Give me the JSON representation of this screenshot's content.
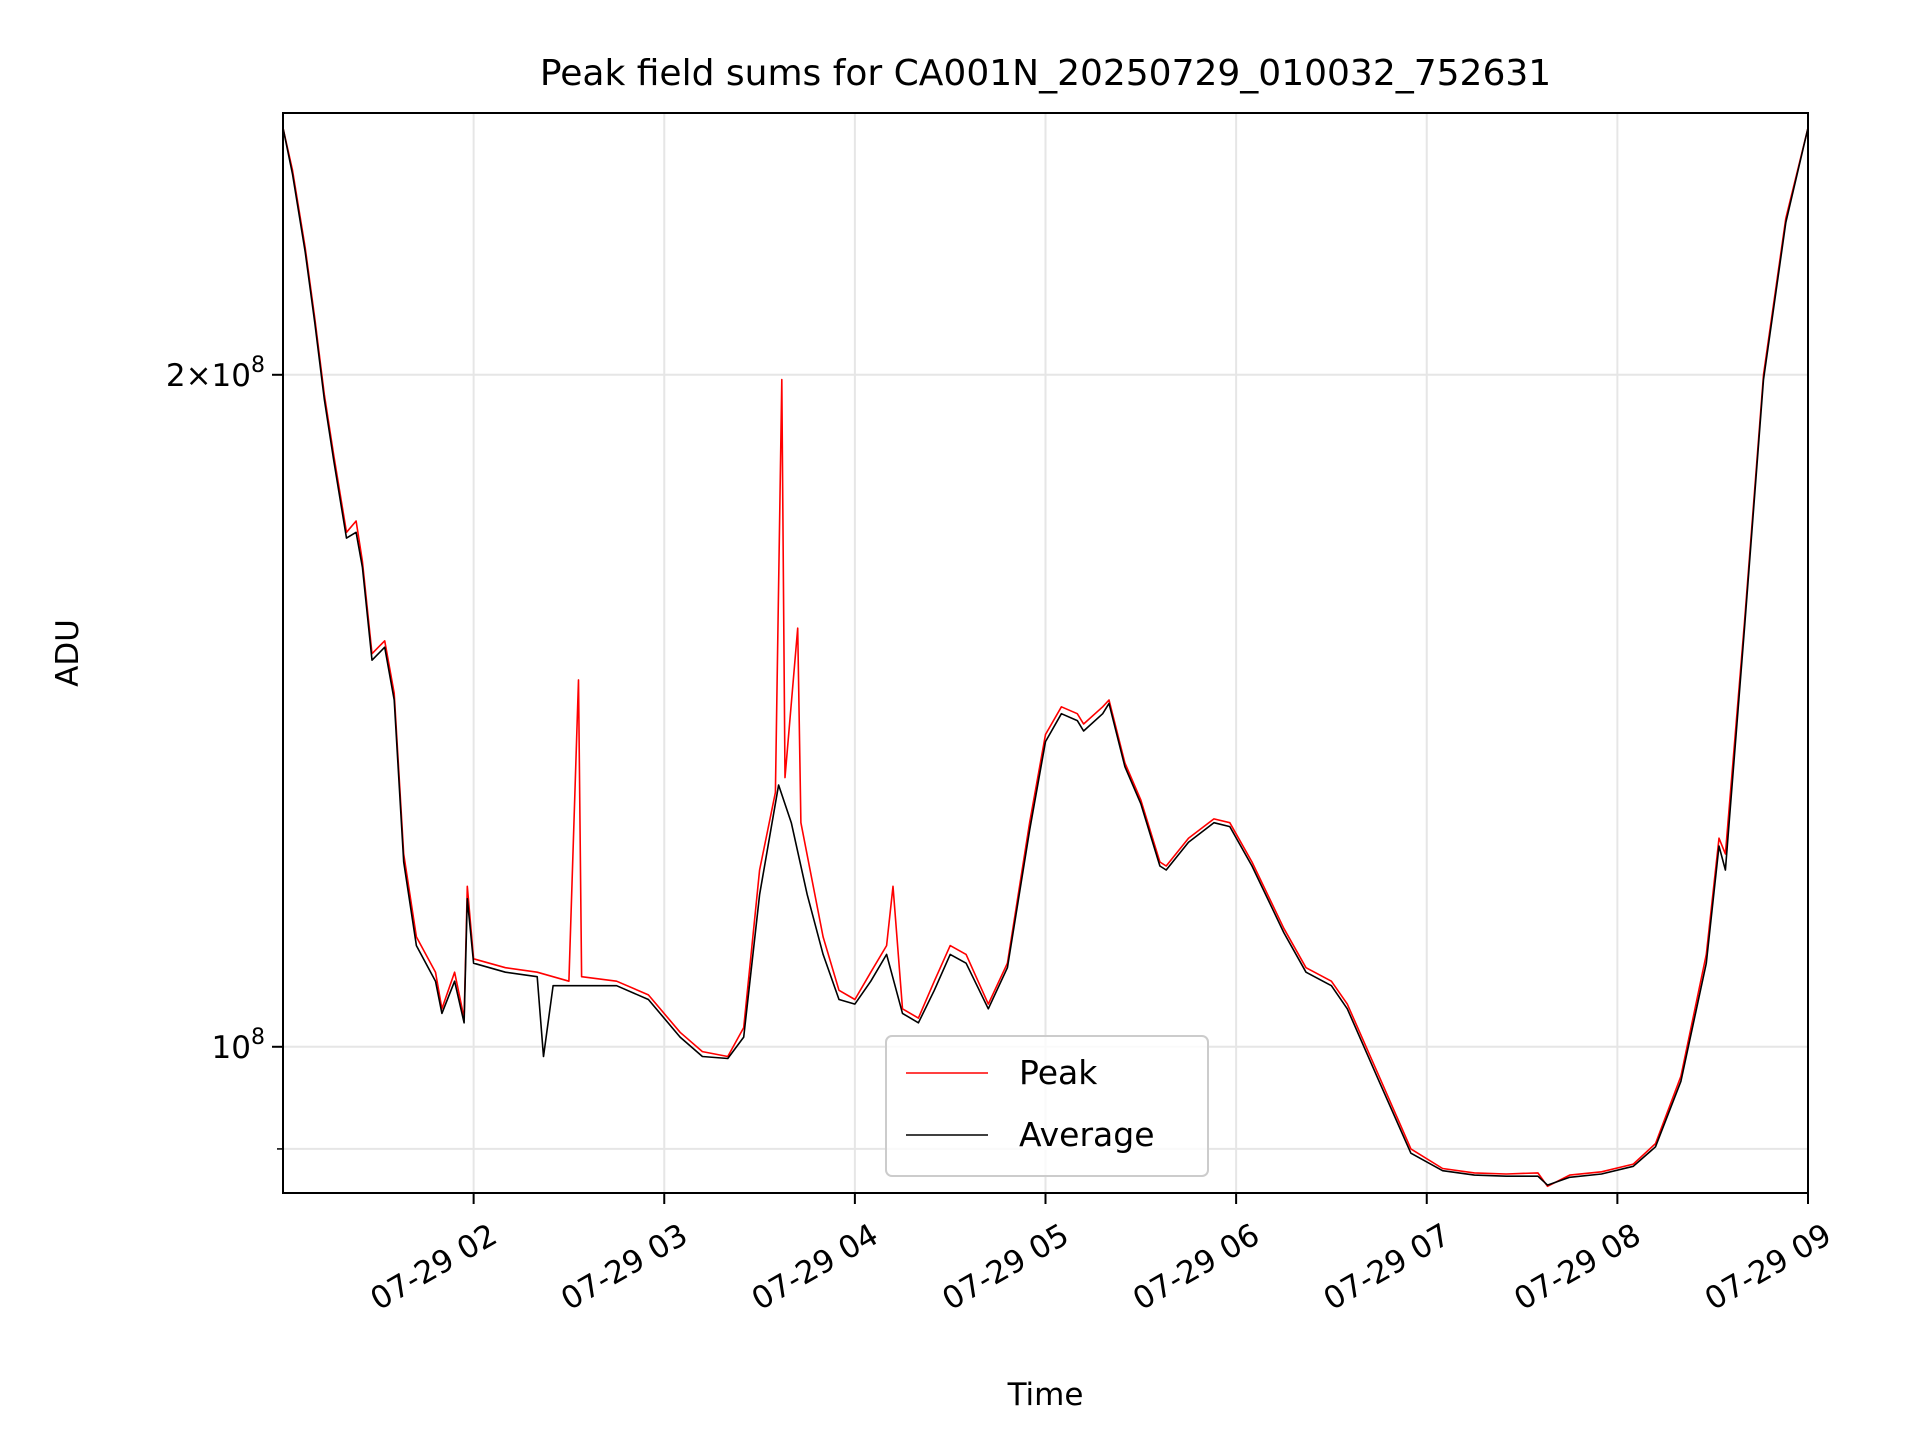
{
  "chart_data": {
    "type": "line",
    "title": "Peak field sums for CA001N_20250729_010032_752631",
    "xlabel": "Time",
    "ylabel": "ADU",
    "x_scale": "time",
    "y_scale": "log",
    "grid": true,
    "legend_position": "lower center",
    "xlim": [
      "2025-07-29 01:00",
      "2025-07-29 09:00"
    ],
    "ylim": [
      86000000,
      262000000
    ],
    "x_ticks": [
      {
        "value": "2025-07-29 02:00",
        "label": "07-29 02"
      },
      {
        "value": "2025-07-29 03:00",
        "label": "07-29 03"
      },
      {
        "value": "2025-07-29 04:00",
        "label": "07-29 04"
      },
      {
        "value": "2025-07-29 05:00",
        "label": "07-29 05"
      },
      {
        "value": "2025-07-29 06:00",
        "label": "07-29 06"
      },
      {
        "value": "2025-07-29 07:00",
        "label": "07-29 07"
      },
      {
        "value": "2025-07-29 08:00",
        "label": "07-29 08"
      },
      {
        "value": "2025-07-29 09:00",
        "label": "07-29 09"
      }
    ],
    "y_major_ticks": [
      {
        "value": 100000000,
        "base": "10",
        "exp": "8",
        "mant": ""
      },
      {
        "value": 200000000,
        "base": "10",
        "exp": "8",
        "mant": "2"
      }
    ],
    "y_minor_gridlines": [
      90000000
    ],
    "series": [
      {
        "name": "Peak",
        "color": "#ff0000",
        "points": [
          [
            "2025-07-29 01:00",
            258000000
          ],
          [
            "2025-07-29 01:03",
            247000000
          ],
          [
            "2025-07-29 01:07",
            228000000
          ],
          [
            "2025-07-29 01:10",
            212000000
          ],
          [
            "2025-07-29 01:13",
            196000000
          ],
          [
            "2025-07-29 01:16",
            184000000
          ],
          [
            "2025-07-29 01:20",
            170000000
          ],
          [
            "2025-07-29 01:23",
            172000000
          ],
          [
            "2025-07-29 01:25",
            165000000
          ],
          [
            "2025-07-29 01:28",
            150000000
          ],
          [
            "2025-07-29 01:32",
            152000000
          ],
          [
            "2025-07-29 01:35",
            144000000
          ],
          [
            "2025-07-29 01:38",
            122000000
          ],
          [
            "2025-07-29 01:42",
            112000000
          ],
          [
            "2025-07-29 01:48",
            108000000
          ],
          [
            "2025-07-29 01:50",
            104000000
          ],
          [
            "2025-07-29 01:54",
            108000000
          ],
          [
            "2025-07-29 01:57",
            103000000
          ],
          [
            "2025-07-29 01:58",
            118000000
          ],
          [
            "2025-07-29 02:00",
            109500000
          ],
          [
            "2025-07-29 02:10",
            108500000
          ],
          [
            "2025-07-29 02:20",
            108000000
          ],
          [
            "2025-07-29 02:30",
            107000000
          ],
          [
            "2025-07-29 02:33",
            146000000
          ],
          [
            "2025-07-29 02:34",
            107500000
          ],
          [
            "2025-07-29 02:45",
            107000000
          ],
          [
            "2025-07-29 02:55",
            105500000
          ],
          [
            "2025-07-29 03:05",
            101500000
          ],
          [
            "2025-07-29 03:12",
            99500000
          ],
          [
            "2025-07-29 03:20",
            99000000
          ],
          [
            "2025-07-29 03:25",
            102000000
          ],
          [
            "2025-07-29 03:30",
            120000000
          ],
          [
            "2025-07-29 03:35",
            130000000
          ],
          [
            "2025-07-29 03:37",
            199000000
          ],
          [
            "2025-07-29 03:38",
            132000000
          ],
          [
            "2025-07-29 03:42",
            154000000
          ],
          [
            "2025-07-29 03:43",
            126000000
          ],
          [
            "2025-07-29 03:50",
            112000000
          ],
          [
            "2025-07-29 03:55",
            106000000
          ],
          [
            "2025-07-29 04:00",
            105000000
          ],
          [
            "2025-07-29 04:05",
            108000000
          ],
          [
            "2025-07-29 04:10",
            111000000
          ],
          [
            "2025-07-29 04:12",
            118000000
          ],
          [
            "2025-07-29 04:15",
            104000000
          ],
          [
            "2025-07-29 04:20",
            103000000
          ],
          [
            "2025-07-29 04:25",
            107000000
          ],
          [
            "2025-07-29 04:30",
            111000000
          ],
          [
            "2025-07-29 04:35",
            110000000
          ],
          [
            "2025-07-29 04:42",
            104500000
          ],
          [
            "2025-07-29 04:48",
            109000000
          ],
          [
            "2025-07-29 04:55",
            126000000
          ],
          [
            "2025-07-29 05:00",
            138000000
          ],
          [
            "2025-07-29 05:05",
            142000000
          ],
          [
            "2025-07-29 05:10",
            141000000
          ],
          [
            "2025-07-29 05:12",
            139500000
          ],
          [
            "2025-07-29 05:18",
            142000000
          ],
          [
            "2025-07-29 05:20",
            143000000
          ],
          [
            "2025-07-29 05:25",
            134000000
          ],
          [
            "2025-07-29 05:30",
            129000000
          ],
          [
            "2025-07-29 05:36",
            121000000
          ],
          [
            "2025-07-29 05:38",
            120500000
          ],
          [
            "2025-07-29 05:45",
            124000000
          ],
          [
            "2025-07-29 05:53",
            126500000
          ],
          [
            "2025-07-29 05:58",
            126000000
          ],
          [
            "2025-07-29 06:05",
            121000000
          ],
          [
            "2025-07-29 06:15",
            113000000
          ],
          [
            "2025-07-29 06:22",
            108500000
          ],
          [
            "2025-07-29 06:30",
            107000000
          ],
          [
            "2025-07-29 06:35",
            104500000
          ],
          [
            "2025-07-29 06:45",
            97000000
          ],
          [
            "2025-07-29 06:55",
            90000000
          ],
          [
            "2025-07-29 07:05",
            88200000
          ],
          [
            "2025-07-29 07:15",
            87800000
          ],
          [
            "2025-07-29 07:25",
            87700000
          ],
          [
            "2025-07-29 07:35",
            87800000
          ],
          [
            "2025-07-29 07:38",
            86600000
          ],
          [
            "2025-07-29 07:45",
            87600000
          ],
          [
            "2025-07-29 07:55",
            87900000
          ],
          [
            "2025-07-29 08:05",
            88600000
          ],
          [
            "2025-07-29 08:12",
            90500000
          ],
          [
            "2025-07-29 08:20",
            97000000
          ],
          [
            "2025-07-29 08:28",
            110000000
          ],
          [
            "2025-07-29 08:32",
            124000000
          ],
          [
            "2025-07-29 08:34",
            122000000
          ],
          [
            "2025-07-29 08:40",
            155000000
          ],
          [
            "2025-07-29 08:46",
            200000000
          ],
          [
            "2025-07-29 08:53",
            235000000
          ],
          [
            "2025-07-29 09:00",
            258000000
          ]
        ]
      },
      {
        "name": "Average",
        "color": "#000000",
        "points": [
          [
            "2025-07-29 01:00",
            258000000
          ],
          [
            "2025-07-29 01:03",
            246000000
          ],
          [
            "2025-07-29 01:07",
            227000000
          ],
          [
            "2025-07-29 01:10",
            211000000
          ],
          [
            "2025-07-29 01:13",
            195000000
          ],
          [
            "2025-07-29 01:16",
            183000000
          ],
          [
            "2025-07-29 01:20",
            169000000
          ],
          [
            "2025-07-29 01:23",
            170000000
          ],
          [
            "2025-07-29 01:25",
            164000000
          ],
          [
            "2025-07-29 01:28",
            149000000
          ],
          [
            "2025-07-29 01:32",
            151000000
          ],
          [
            "2025-07-29 01:35",
            143000000
          ],
          [
            "2025-07-29 01:38",
            121000000
          ],
          [
            "2025-07-29 01:42",
            111000000
          ],
          [
            "2025-07-29 01:48",
            107000000
          ],
          [
            "2025-07-29 01:50",
            103500000
          ],
          [
            "2025-07-29 01:54",
            107000000
          ],
          [
            "2025-07-29 01:57",
            102500000
          ],
          [
            "2025-07-29 01:58",
            116500000
          ],
          [
            "2025-07-29 02:00",
            109000000
          ],
          [
            "2025-07-29 02:10",
            108000000
          ],
          [
            "2025-07-29 02:20",
            107500000
          ],
          [
            "2025-07-29 02:22",
            99000000
          ],
          [
            "2025-07-29 02:25",
            106500000
          ],
          [
            "2025-07-29 02:30",
            106500000
          ],
          [
            "2025-07-29 02:45",
            106500000
          ],
          [
            "2025-07-29 02:55",
            105000000
          ],
          [
            "2025-07-29 03:05",
            101000000
          ],
          [
            "2025-07-29 03:12",
            99000000
          ],
          [
            "2025-07-29 03:20",
            98800000
          ],
          [
            "2025-07-29 03:25",
            101000000
          ],
          [
            "2025-07-29 03:30",
            117000000
          ],
          [
            "2025-07-29 03:36",
            131000000
          ],
          [
            "2025-07-29 03:40",
            126000000
          ],
          [
            "2025-07-29 03:45",
            117000000
          ],
          [
            "2025-07-29 03:50",
            110000000
          ],
          [
            "2025-07-29 03:55",
            105000000
          ],
          [
            "2025-07-29 04:00",
            104500000
          ],
          [
            "2025-07-29 04:05",
            107000000
          ],
          [
            "2025-07-29 04:10",
            110000000
          ],
          [
            "2025-07-29 04:15",
            103500000
          ],
          [
            "2025-07-29 04:20",
            102500000
          ],
          [
            "2025-07-29 04:25",
            106000000
          ],
          [
            "2025-07-29 04:30",
            110000000
          ],
          [
            "2025-07-29 04:35",
            109000000
          ],
          [
            "2025-07-29 04:42",
            104000000
          ],
          [
            "2025-07-29 04:48",
            108500000
          ],
          [
            "2025-07-29 04:55",
            125000000
          ],
          [
            "2025-07-29 05:00",
            137000000
          ],
          [
            "2025-07-29 05:05",
            141000000
          ],
          [
            "2025-07-29 05:10",
            140000000
          ],
          [
            "2025-07-29 05:12",
            138500000
          ],
          [
            "2025-07-29 05:18",
            141000000
          ],
          [
            "2025-07-29 05:20",
            142500000
          ],
          [
            "2025-07-29 05:25",
            133500000
          ],
          [
            "2025-07-29 05:30",
            128500000
          ],
          [
            "2025-07-29 05:36",
            120500000
          ],
          [
            "2025-07-29 05:38",
            120000000
          ],
          [
            "2025-07-29 05:45",
            123500000
          ],
          [
            "2025-07-29 05:53",
            126000000
          ],
          [
            "2025-07-29 05:58",
            125500000
          ],
          [
            "2025-07-29 06:05",
            120500000
          ],
          [
            "2025-07-29 06:15",
            112500000
          ],
          [
            "2025-07-29 06:22",
            108000000
          ],
          [
            "2025-07-29 06:30",
            106500000
          ],
          [
            "2025-07-29 06:35",
            104000000
          ],
          [
            "2025-07-29 06:45",
            96500000
          ],
          [
            "2025-07-29 06:55",
            89600000
          ],
          [
            "2025-07-29 07:05",
            88000000
          ],
          [
            "2025-07-29 07:15",
            87600000
          ],
          [
            "2025-07-29 07:25",
            87500000
          ],
          [
            "2025-07-29 07:35",
            87500000
          ],
          [
            "2025-07-29 07:38",
            86700000
          ],
          [
            "2025-07-29 07:45",
            87400000
          ],
          [
            "2025-07-29 07:55",
            87700000
          ],
          [
            "2025-07-29 08:05",
            88400000
          ],
          [
            "2025-07-29 08:12",
            90200000
          ],
          [
            "2025-07-29 08:20",
            96500000
          ],
          [
            "2025-07-29 08:28",
            109000000
          ],
          [
            "2025-07-29 08:32",
            123000000
          ],
          [
            "2025-07-29 08:34",
            120000000
          ],
          [
            "2025-07-29 08:40",
            154000000
          ],
          [
            "2025-07-29 08:46",
            199000000
          ],
          [
            "2025-07-29 08:53",
            234000000
          ],
          [
            "2025-07-29 09:00",
            258000000
          ]
        ]
      }
    ]
  }
}
